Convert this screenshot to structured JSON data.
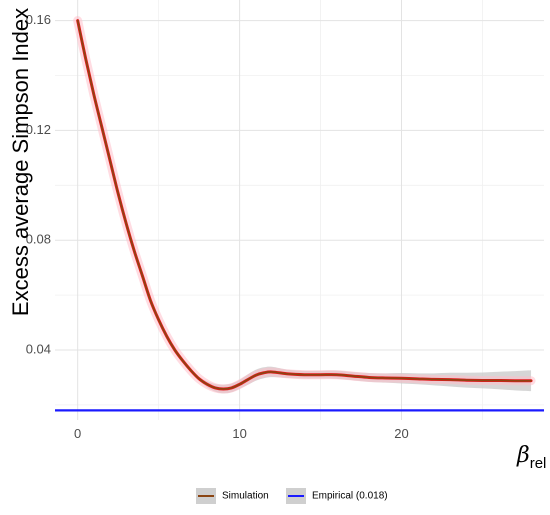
{
  "chart_data": {
    "type": "line",
    "xlabel_symbol": "β",
    "xlabel_subscript": "rel",
    "ylabel": "Excess average Simpson Index",
    "xlim": [
      -1.4,
      28.8
    ],
    "ylim": [
      0.0145,
      0.1675
    ],
    "x_ticks": [
      0,
      10,
      20
    ],
    "y_ticks": [
      0.04,
      0.08,
      0.12,
      0.16
    ],
    "x_tick_labels": [
      "0",
      "10",
      "20"
    ],
    "y_tick_labels": [
      "0.04",
      "0.08",
      "0.12",
      "0.16"
    ],
    "grid": true,
    "legend_position": "bottom",
    "series": [
      {
        "name": "Simulation",
        "color": "#8b4513",
        "line_highlight_color": "#e41a1c",
        "ribbon_color": "#c8c8c8",
        "x": [
          0,
          0.5,
          1,
          1.5,
          2,
          2.5,
          3,
          3.5,
          4,
          4.5,
          5,
          5.5,
          6,
          6.5,
          7,
          7.5,
          8,
          8.5,
          9,
          9.5,
          10,
          10.5,
          11,
          11.5,
          12,
          13,
          14,
          15,
          16,
          17,
          18,
          19,
          20,
          21,
          22,
          23,
          24,
          25,
          26,
          27,
          28
        ],
        "y": [
          0.16,
          0.146,
          0.133,
          0.121,
          0.109,
          0.097,
          0.086,
          0.076,
          0.067,
          0.058,
          0.051,
          0.045,
          0.04,
          0.036,
          0.0325,
          0.0295,
          0.0275,
          0.0262,
          0.0258,
          0.0262,
          0.0275,
          0.0292,
          0.0308,
          0.0317,
          0.032,
          0.0313,
          0.031,
          0.031,
          0.031,
          0.0305,
          0.03,
          0.0298,
          0.0297,
          0.0295,
          0.0293,
          0.0292,
          0.029,
          0.0289,
          0.0289,
          0.0288,
          0.0288
        ],
        "ci_lower": [
          0.158,
          0.1445,
          0.1315,
          0.1195,
          0.1075,
          0.0955,
          0.0845,
          0.0745,
          0.0655,
          0.0568,
          0.05,
          0.0441,
          0.0393,
          0.0354,
          0.0319,
          0.0288,
          0.0264,
          0.0248,
          0.0242,
          0.0246,
          0.0259,
          0.0273,
          0.0288,
          0.0297,
          0.0301,
          0.0298,
          0.0296,
          0.0296,
          0.0295,
          0.029,
          0.0284,
          0.0281,
          0.0278,
          0.0275,
          0.0271,
          0.0267,
          0.0263,
          0.026,
          0.0257,
          0.0253,
          0.025
        ],
        "ci_upper": [
          0.162,
          0.1475,
          0.1345,
          0.1225,
          0.1105,
          0.0985,
          0.0875,
          0.0775,
          0.0685,
          0.0592,
          0.052,
          0.0459,
          0.0407,
          0.0366,
          0.0331,
          0.0302,
          0.0286,
          0.0276,
          0.0274,
          0.0278,
          0.0291,
          0.0311,
          0.0328,
          0.0337,
          0.0339,
          0.0328,
          0.0324,
          0.0324,
          0.0325,
          0.032,
          0.0316,
          0.0315,
          0.0316,
          0.0315,
          0.0315,
          0.0317,
          0.0317,
          0.0318,
          0.0321,
          0.0323,
          0.0326
        ]
      },
      {
        "name": "Empirical (0.018)",
        "type": "hline",
        "color": "#1a1aff",
        "y": 0.018
      }
    ]
  }
}
